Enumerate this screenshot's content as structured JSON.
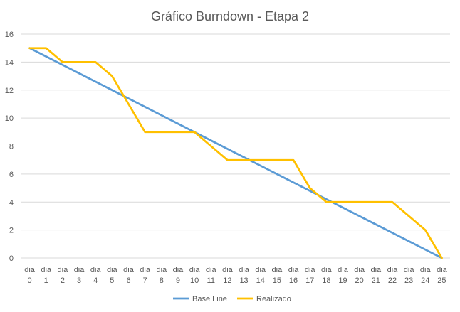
{
  "chart_data": {
    "type": "line",
    "title": "Gráfico Burndown - Etapa 2",
    "xlabel": "",
    "ylabel": "",
    "categories": [
      [
        "dia",
        "0"
      ],
      [
        "dia",
        "1"
      ],
      [
        "dia",
        "2"
      ],
      [
        "dia",
        "3"
      ],
      [
        "dia",
        "4"
      ],
      [
        "dia",
        "5"
      ],
      [
        "dia",
        "6"
      ],
      [
        "dia",
        "7"
      ],
      [
        "dia",
        "8"
      ],
      [
        "dia",
        "9"
      ],
      [
        "dia",
        "10"
      ],
      [
        "dia",
        "11"
      ],
      [
        "dia",
        "12"
      ],
      [
        "dia",
        "13"
      ],
      [
        "dia",
        "14"
      ],
      [
        "dia",
        "15"
      ],
      [
        "dia",
        "16"
      ],
      [
        "dia",
        "17"
      ],
      [
        "dia",
        "18"
      ],
      [
        "dia",
        "19"
      ],
      [
        "dia",
        "20"
      ],
      [
        "dia",
        "21"
      ],
      [
        "dia",
        "22"
      ],
      [
        "dia",
        "23"
      ],
      [
        "dia",
        "24"
      ],
      [
        "dia",
        "25"
      ]
    ],
    "ylim": [
      0,
      16
    ],
    "yticks": [
      "0",
      "2",
      "4",
      "6",
      "8",
      "10",
      "12",
      "14",
      "16"
    ],
    "grid": true,
    "legend_position": "bottom",
    "series": [
      {
        "name": "Base Line",
        "color": "#5b9bd5",
        "values": [
          15,
          14.4,
          13.8,
          13.2,
          12.6,
          12,
          11.4,
          10.8,
          10.2,
          9.6,
          9,
          8.4,
          7.8,
          7.2,
          6.6,
          6,
          5.4,
          4.8,
          4.2,
          3.6,
          3,
          2.4,
          1.8,
          1.2,
          0.6,
          0
        ]
      },
      {
        "name": "Realizado",
        "color": "#ffc000",
        "values": [
          15,
          15,
          14,
          14,
          14,
          13,
          11,
          9,
          9,
          9,
          9,
          8,
          7,
          7,
          7,
          7,
          7,
          5,
          4,
          4,
          4,
          4,
          4,
          3,
          2,
          0
        ]
      }
    ]
  }
}
